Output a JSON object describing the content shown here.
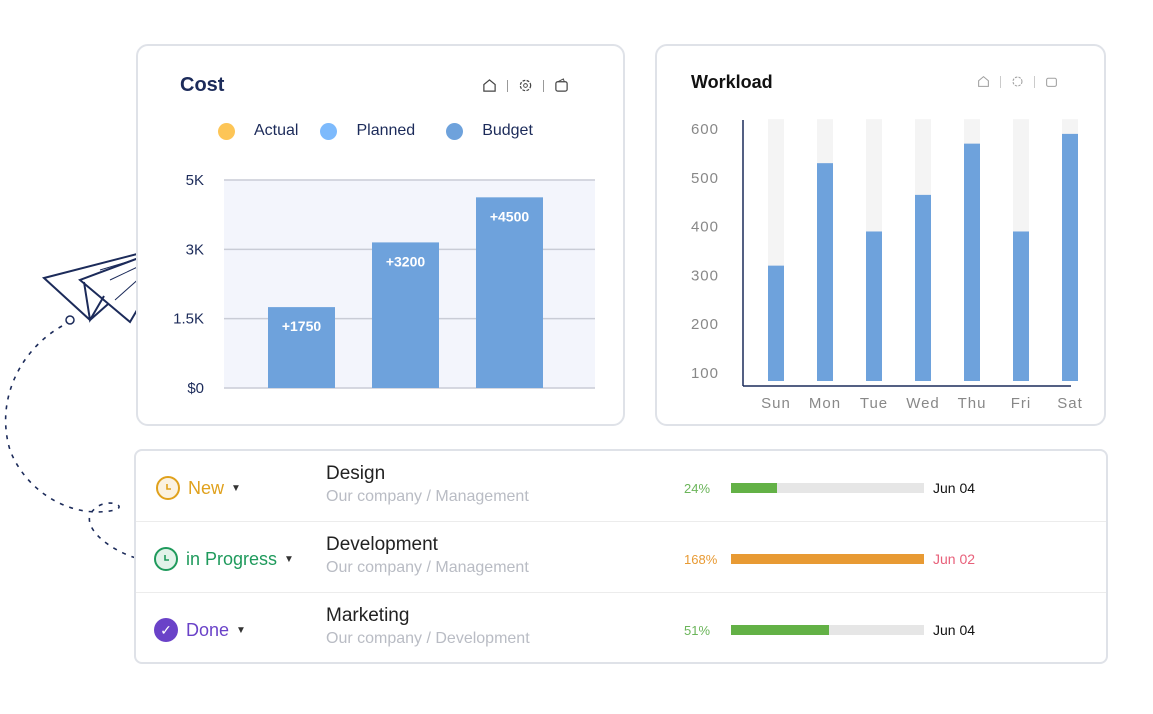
{
  "cost": {
    "title": "Cost",
    "icons": [
      "home-icon",
      "gear-icon",
      "wallet-icon"
    ],
    "legend": [
      {
        "label": "Actual",
        "color": "#fdc556"
      },
      {
        "label": "Planned",
        "color": "#7dbafc"
      },
      {
        "label": "Budget",
        "color": "#6ea2dc"
      }
    ]
  },
  "workload": {
    "title": "Workload",
    "icons": [
      "home-icon",
      "gear-icon",
      "wallet-icon"
    ]
  },
  "chart_data": [
    {
      "type": "bar",
      "title": "Cost",
      "yticks": [
        0,
        1500,
        3000,
        5000
      ],
      "ytick_labels": [
        "$0",
        "1.5K",
        "3K",
        "5K"
      ],
      "values": [
        1750,
        3200,
        4500
      ],
      "labels": [
        "+1750",
        "+3200",
        "+4500"
      ],
      "color": "#6ea2dc",
      "grid": true
    },
    {
      "type": "bar",
      "title": "Workload",
      "categories": [
        "Sun",
        "Mon",
        "Tue",
        "Wed",
        "Thu",
        "Fri",
        "Sat"
      ],
      "values": [
        320,
        530,
        390,
        465,
        570,
        390,
        590
      ],
      "track_max": 620,
      "yticks": [
        100,
        200,
        300,
        400,
        500,
        600
      ],
      "ylim": [
        100,
        600
      ],
      "color": "#6ea2dc"
    }
  ],
  "tasks": [
    {
      "status": "New",
      "status_color": "#e0a11c",
      "icon": "clock-icon",
      "name": "Design",
      "path": "Our company / Management",
      "percent_label": "24%",
      "percent": 24,
      "pct_color": "#6bb55a",
      "bar_color": "#63b146",
      "date": "Jun 04",
      "date_color": "#111"
    },
    {
      "status": "in Progress",
      "status_color": "#1f9a5c",
      "icon": "clock-icon",
      "name": "Development",
      "path": "Our company / Management",
      "percent_label": "168%",
      "percent": 168,
      "pct_color": "#e89a33",
      "bar_color": "#e89a33",
      "date": "Jun 02",
      "date_color": "#e8607a"
    },
    {
      "status": "Done",
      "status_color": "#6a42c8",
      "icon": "check-icon",
      "name": "Marketing",
      "path": "Our company / Development",
      "percent_label": "51%",
      "percent": 51,
      "pct_color": "#6bb55a",
      "bar_color": "#63b146",
      "date": "Jun 04",
      "date_color": "#111"
    }
  ]
}
